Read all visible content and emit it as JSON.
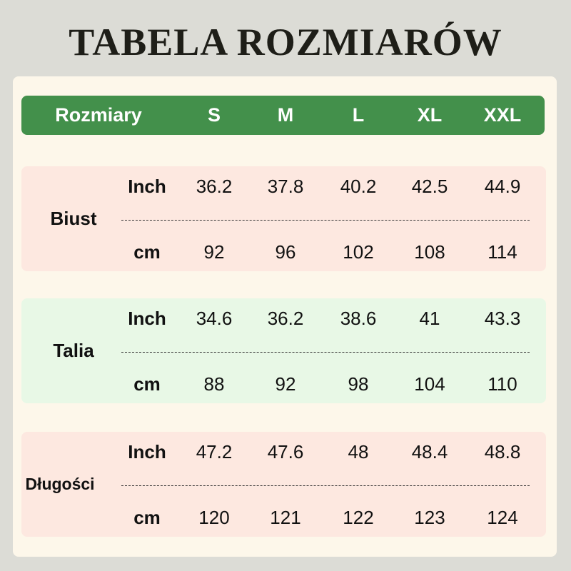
{
  "title": "TABELA ROZMIARÓW",
  "header": {
    "label": "Rozmiary",
    "sizes": [
      "S",
      "M",
      "L",
      "XL",
      "XXL"
    ]
  },
  "colors": {
    "header": "#43904b",
    "panel": "#fdf7ea",
    "pink": "#fde8e0",
    "green": "#e8f8e6"
  },
  "sections": [
    {
      "name": "Biust",
      "color": "#fde8e0",
      "rows": [
        {
          "unit": "Inch",
          "values": [
            "36.2",
            "37.8",
            "40.2",
            "42.5",
            "44.9"
          ]
        },
        {
          "unit": "cm",
          "values": [
            "92",
            "96",
            "102",
            "108",
            "114"
          ]
        }
      ]
    },
    {
      "name": "Talia",
      "color": "#e8f8e6",
      "rows": [
        {
          "unit": "Inch",
          "values": [
            "34.6",
            "36.2",
            "38.6",
            "41",
            "43.3"
          ]
        },
        {
          "unit": "cm",
          "values": [
            "88",
            "92",
            "98",
            "104",
            "110"
          ]
        }
      ]
    },
    {
      "name": "Długości",
      "color": "#fde8e0",
      "rows": [
        {
          "unit": "Inch",
          "values": [
            "47.2",
            "47.6",
            "48",
            "48.4",
            "48.8"
          ]
        },
        {
          "unit": "cm",
          "values": [
            "120",
            "121",
            "122",
            "123",
            "124"
          ]
        }
      ]
    }
  ]
}
